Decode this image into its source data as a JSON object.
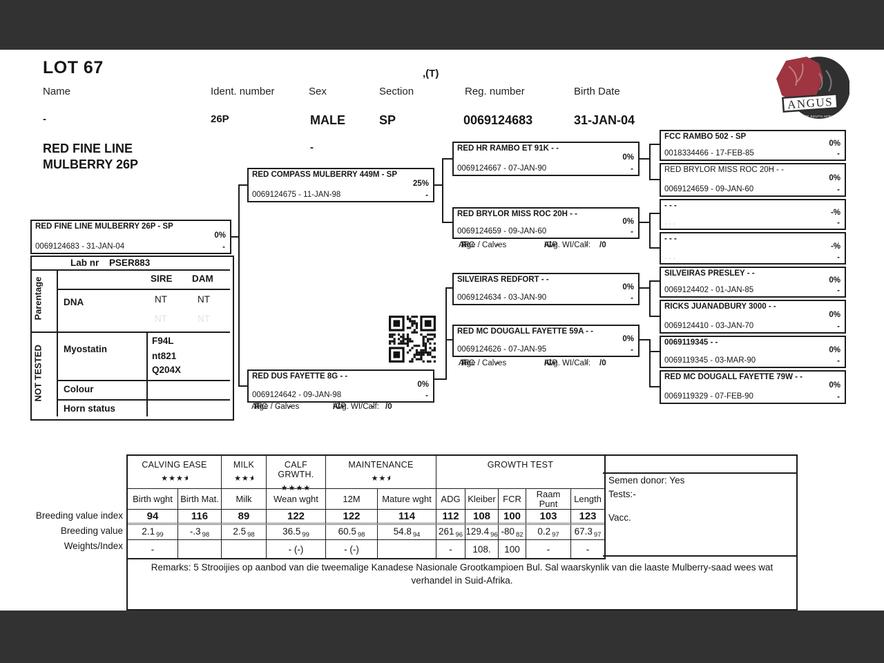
{
  "colors": {
    "bar": "#323232",
    "ink": "#161616",
    "logo_red": "#9e3540",
    "logo_dark": "#303031"
  },
  "header": {
    "lot": "LOT 67",
    "type_tag": ",(T)",
    "fields": [
      {
        "label": "Name",
        "value": "-"
      },
      {
        "label": "Ident. number",
        "value": "26P"
      },
      {
        "label": "Sex",
        "value": "MALE"
      },
      {
        "label": "Section",
        "value": "SP"
      },
      {
        "label": "Reg. number",
        "value": "0069124683"
      },
      {
        "label": "Birth Date",
        "value": "31-JAN-04"
      }
    ],
    "sex_extra": "-",
    "name_line1": "RED FINE LINE",
    "name_line2": "MULBERRY 26P",
    "logo_text": "ANGUS",
    "logo_subtext": "SOCIETY OF SOUTH AFRICA"
  },
  "subject_panel": {
    "lab_label": "Lab nr",
    "lab_value": "PSER883",
    "sire_col": "SIRE",
    "dam_col": "DAM",
    "section1": "Parentage",
    "section2": "NOT TESTED",
    "dna_label": "DNA",
    "dna_sire": "NT",
    "dna_dam": "NT",
    "dna_ghost_sire": "NT",
    "dna_ghost_dam": "NT",
    "myostatin_label": "Myostatin",
    "myostatin_values": [
      "F94L",
      "nt821",
      "Q204X"
    ],
    "colour_label": "Colour",
    "horn_label": "Horn status"
  },
  "pedigree": {
    "subject": {
      "title": "RED FINE LINE MULBERRY 26P - SP",
      "id": "0069124683 -  31-JAN-04",
      "pct": "0%",
      "dash": "-"
    },
    "sire": {
      "title": "RED COMPASS MULBERRY 449M - SP",
      "id": "0069124675 - 11-JAN-98",
      "pct": "25%",
      "dash": "-"
    },
    "dam": {
      "title": "RED DUS FAYETTE 8G - -",
      "id": "0069124642 - 09-JAN-98",
      "pct": "0%",
      "dash": "-"
    },
    "ss": {
      "title": "RED HR RAMBO ET 91K - -",
      "id": "0069124667 - 07-JAN-90",
      "pct": "0%",
      "dash": "-"
    },
    "sd": {
      "title": "RED BRYLOR MISS ROC 20H - -",
      "id": "0069124659 - 09-JAN-60",
      "pct": "0%",
      "dash": "-"
    },
    "ds": {
      "title": "SILVEIRAS REDFORT - -",
      "id": "0069124634 - 03-JAN-90",
      "pct": "0%",
      "dash": "-"
    },
    "dd": {
      "title": "RED MC DOUGALL FAYETTE 59A - -",
      "id": "0069124626 - 07-JAN-95",
      "pct": "0%",
      "dash": "-"
    },
    "sss": {
      "title": "FCC RAMBO 502 - SP",
      "id": "0018334466 - 17-FEB-85",
      "pct": "0%",
      "dash": "-"
    },
    "ssd": {
      "title": "RED BRYLOR MISS ROC 20H - -",
      "id": "0069124659 - 09-JAN-60",
      "pct": "0%",
      "dash": "-"
    },
    "sds": {
      "title": "- - -",
      "id": ". . .",
      "pct": "-%",
      "dash": "-"
    },
    "sdd": {
      "title": "- - -",
      "id": ". . .",
      "pct": "-%",
      "dash": "-"
    },
    "dss": {
      "title": "SILVEIRAS PRESLEY - -",
      "id": "0069124402 - 01-JAN-85",
      "pct": "0%",
      "dash": "-"
    },
    "dsd": {
      "title": "RICKS JUANADBURY 3000 - -",
      "id": "0069124410 - 03-JAN-70",
      "pct": "0%",
      "dash": "-"
    },
    "dds": {
      "title": "0069119345 - -",
      "id": "0069119345 - 03-MAR-90",
      "pct": "0%",
      "dash": "-"
    },
    "ddd": {
      "title": "RED MC DOUGALL FAYETTE 79W - -",
      "id": "0069119329 - 07-FEB-90",
      "pct": "0%",
      "dash": "-"
    }
  },
  "stat_block": {
    "afc_label": "AFC",
    "afc_value": "-",
    "icp_label": "ICP",
    "icp_value": "-",
    "ri_label": "RI",
    "ri_value": "-",
    "avg_label": "Avg. WI/Calf:",
    "avg_value": "/0",
    "age_label": "Age / Calves",
    "age_value": "- / -"
  },
  "ebv": {
    "groups": [
      {
        "label": "CALVING EASE",
        "stars": 3.5,
        "span": 2
      },
      {
        "label": "MILK",
        "stars": 2.5,
        "span": 1
      },
      {
        "label": "CALF GRWTH.",
        "stars": 4,
        "span": 1
      },
      {
        "label": "MAINTENANCE",
        "stars": 2.5,
        "span": 2
      },
      {
        "label": "GROWTH TEST",
        "stars": 0,
        "span": 5
      }
    ],
    "columns": [
      "Birth wght",
      "Birth Mat.",
      "Milk",
      "Wean wght",
      "12M",
      "Mature wght",
      "ADG",
      "Kleiber",
      "FCR",
      "Raam Punt",
      "Length"
    ],
    "row_labels": [
      "Breeding value index",
      "Breeding value",
      "Weights/Index"
    ],
    "index_values": [
      "94",
      "116",
      "89",
      "122",
      "122",
      "114",
      "112",
      "108",
      "100",
      "103",
      "123"
    ],
    "breeding_values": [
      {
        "v": "2.1",
        "acc": "99"
      },
      {
        "v": "-.3",
        "acc": "98"
      },
      {
        "v": "2.5",
        "acc": "98"
      },
      {
        "v": "36.5",
        "acc": "99"
      },
      {
        "v": "60.5",
        "acc": "98"
      },
      {
        "v": "54.8",
        "acc": "94"
      },
      {
        "v": "261",
        "acc": "96"
      },
      {
        "v": "129.4",
        "acc": "96"
      },
      {
        "v": "-80",
        "acc": "82"
      },
      {
        "v": "0.2",
        "acc": "97"
      },
      {
        "v": "67.3",
        "acc": "97"
      }
    ],
    "weights": [
      "-",
      "",
      "",
      "- (-)",
      "- (-)",
      "",
      "-",
      "108.",
      "100",
      "-",
      "-"
    ]
  },
  "side_panel": {
    "semen_donor": "Semen donor: Yes",
    "tests": "Tests:-",
    "vacc": "Vacc."
  },
  "remarks": "Remarks: 5 Strooijies op aanbod van die tweemalige Kanadese Nasionale Grootkampioen Bul. Sal waarskynlik van die laaste Mulberry-saad wees wat verhandel in Suid-Afrika."
}
